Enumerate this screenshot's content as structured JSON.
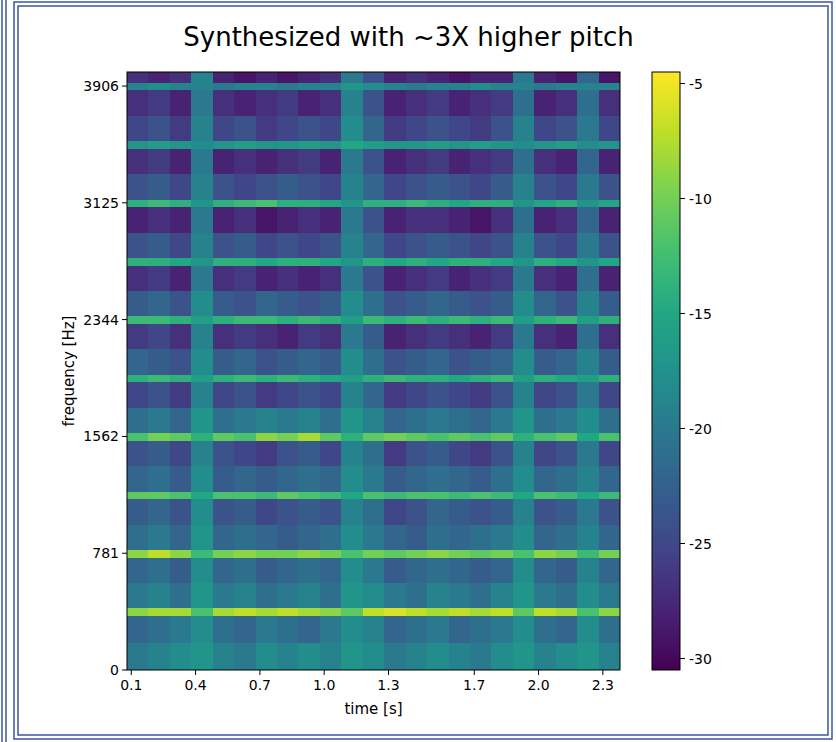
{
  "chart_data": {
    "type": "heatmap",
    "title": "Synthesized with ~3X higher pitch",
    "x_label": "time [s]",
    "y_label": "frequency [Hz]",
    "xlim": [
      0.08,
      2.38
    ],
    "ylim": [
      0,
      4000
    ],
    "xticks": [
      0.1,
      0.4,
      0.7,
      {
        "value": 1.0,
        "label": "1.0"
      },
      1.3,
      1.7,
      {
        "value": 2.0,
        "label": "2.0"
      },
      2.3
    ],
    "yticks": [
      0,
      781,
      1562,
      2344,
      3125,
      3906
    ],
    "color": "viridis",
    "colorbar": {
      "range": [
        -30.5,
        -4.5
      ],
      "ticks": [
        -5,
        -10,
        -15,
        -20,
        -25,
        -30
      ]
    },
    "x_edges": [
      0.08,
      0.18,
      0.28,
      0.38,
      0.48,
      0.58,
      0.68,
      0.78,
      0.88,
      0.98,
      1.08,
      1.18,
      1.28,
      1.38,
      1.48,
      1.58,
      1.68,
      1.78,
      1.88,
      1.98,
      2.08,
      2.18,
      2.28,
      2.38
    ],
    "y_edges": [
      0,
      183,
      366,
      416,
      586,
      756,
      806,
      977,
      1147,
      1197,
      1367,
      1537,
      1587,
      1758,
      1928,
      1978,
      2149,
      2319,
      2369,
      2539,
      2709,
      2759,
      2930,
      3100,
      3150,
      3320,
      3490,
      3540,
      3711,
      3881,
      3931,
      4000
    ],
    "z": [
      [
        -20,
        -19,
        -18,
        -17,
        -19,
        -20,
        -18,
        -19,
        -18,
        -19,
        -17,
        -18,
        -20,
        -19,
        -18,
        -19,
        -20,
        -18,
        -17,
        -19,
        -18,
        -17,
        -19
      ],
      [
        -22,
        -21,
        -20,
        -18,
        -21,
        -22,
        -20,
        -21,
        -22,
        -20,
        -18,
        -19,
        -22,
        -21,
        -20,
        -22,
        -21,
        -20,
        -18,
        -21,
        -22,
        -18,
        -21
      ],
      [
        -9,
        -8,
        -8,
        -12,
        -8,
        -7,
        -8,
        -7,
        -8,
        -9,
        -11,
        -7,
        -6,
        -7,
        -8,
        -7,
        -8,
        -7,
        -11,
        -7,
        -8,
        -12,
        -9
      ],
      [
        -20,
        -19,
        -21,
        -17,
        -20,
        -19,
        -21,
        -20,
        -19,
        -21,
        -17,
        -18,
        -20,
        -21,
        -19,
        -20,
        -21,
        -19,
        -17,
        -20,
        -21,
        -18,
        -20
      ],
      [
        -22,
        -21,
        -23,
        -18,
        -22,
        -21,
        -23,
        -22,
        -21,
        -22,
        -18,
        -20,
        -23,
        -22,
        -21,
        -22,
        -23,
        -22,
        -18,
        -22,
        -23,
        -19,
        -22
      ],
      [
        -9,
        -7,
        -9,
        -13,
        -10,
        -9,
        -10,
        -10,
        -9,
        -10,
        -12,
        -10,
        -11,
        -10,
        -9,
        -10,
        -11,
        -10,
        -12,
        -9,
        -10,
        -13,
        -10
      ],
      [
        -21,
        -20,
        -22,
        -17,
        -22,
        -21,
        -22,
        -23,
        -22,
        -21,
        -18,
        -20,
        -22,
        -23,
        -21,
        -22,
        -21,
        -20,
        -18,
        -22,
        -21,
        -19,
        -22
      ],
      [
        -23,
        -22,
        -24,
        -18,
        -24,
        -23,
        -25,
        -24,
        -23,
        -24,
        -19,
        -21,
        -25,
        -24,
        -22,
        -23,
        -24,
        -23,
        -19,
        -24,
        -23,
        -20,
        -24
      ],
      [
        -11,
        -11,
        -12,
        -15,
        -12,
        -12,
        -13,
        -11,
        -12,
        -13,
        -15,
        -12,
        -13,
        -12,
        -12,
        -13,
        -12,
        -13,
        -15,
        -12,
        -13,
        -15,
        -13
      ],
      [
        -22,
        -21,
        -23,
        -18,
        -23,
        -22,
        -23,
        -22,
        -21,
        -22,
        -18,
        -20,
        -23,
        -22,
        -21,
        -22,
        -23,
        -21,
        -18,
        -22,
        -21,
        -19,
        -22
      ],
      [
        -24,
        -23,
        -25,
        -19,
        -24,
        -25,
        -26,
        -24,
        -23,
        -25,
        -19,
        -21,
        -26,
        -24,
        -23,
        -25,
        -26,
        -24,
        -19,
        -25,
        -24,
        -20,
        -25
      ],
      [
        -12,
        -10,
        -11,
        -14,
        -11,
        -12,
        -9,
        -10,
        -8,
        -11,
        -14,
        -11,
        -10,
        -11,
        -12,
        -11,
        -12,
        -11,
        -14,
        -12,
        -11,
        -15,
        -12
      ],
      [
        -21,
        -20,
        -22,
        -17,
        -21,
        -20,
        -19,
        -20,
        -19,
        -21,
        -17,
        -19,
        -22,
        -21,
        -20,
        -21,
        -22,
        -20,
        -17,
        -21,
        -20,
        -18,
        -21
      ],
      [
        -25,
        -24,
        -26,
        -19,
        -25,
        -24,
        -26,
        -25,
        -24,
        -25,
        -19,
        -22,
        -26,
        -25,
        -24,
        -25,
        -26,
        -24,
        -19,
        -25,
        -24,
        -20,
        -25
      ],
      [
        -14,
        -13,
        -14,
        -16,
        -14,
        -13,
        -14,
        -13,
        -14,
        -15,
        -16,
        -14,
        -13,
        -14,
        -14,
        -15,
        -14,
        -13,
        -16,
        -14,
        -15,
        -16,
        -14
      ],
      [
        -22,
        -23,
        -24,
        -18,
        -23,
        -22,
        -24,
        -23,
        -22,
        -23,
        -18,
        -21,
        -24,
        -23,
        -22,
        -24,
        -23,
        -22,
        -18,
        -23,
        -22,
        -19,
        -23
      ],
      [
        -26,
        -25,
        -27,
        -19,
        -27,
        -26,
        -27,
        -28,
        -26,
        -27,
        -20,
        -23,
        -28,
        -27,
        -26,
        -27,
        -28,
        -26,
        -20,
        -27,
        -28,
        -21,
        -27
      ],
      [
        -13,
        -13,
        -14,
        -16,
        -14,
        -13,
        -13,
        -14,
        -13,
        -14,
        -16,
        -13,
        -14,
        -13,
        -14,
        -13,
        -14,
        -13,
        -16,
        -14,
        -13,
        -16,
        -14
      ],
      [
        -23,
        -22,
        -24,
        -18,
        -23,
        -24,
        -22,
        -23,
        -24,
        -23,
        -18,
        -21,
        -24,
        -23,
        -22,
        -23,
        -24,
        -23,
        -18,
        -22,
        -24,
        -19,
        -23
      ],
      [
        -27,
        -26,
        -28,
        -20,
        -27,
        -26,
        -28,
        -27,
        -28,
        -27,
        -20,
        -24,
        -28,
        -27,
        -26,
        -28,
        -27,
        -26,
        -20,
        -27,
        -28,
        -21,
        -28
      ],
      [
        -14,
        -14,
        -15,
        -17,
        -14,
        -14,
        -15,
        -14,
        -14,
        -15,
        -17,
        -14,
        -15,
        -14,
        -15,
        -14,
        -14,
        -15,
        -17,
        -14,
        -15,
        -17,
        -15
      ],
      [
        -24,
        -23,
        -25,
        -19,
        -24,
        -23,
        -25,
        -24,
        -25,
        -24,
        -19,
        -22,
        -25,
        -24,
        -23,
        -24,
        -25,
        -24,
        -19,
        -24,
        -25,
        -20,
        -24
      ],
      [
        -28,
        -27,
        -28,
        -20,
        -28,
        -27,
        -29,
        -28,
        -27,
        -28,
        -20,
        -24,
        -28,
        -27,
        -27,
        -28,
        -29,
        -27,
        -21,
        -28,
        -27,
        -22,
        -28
      ],
      [
        -14,
        -13,
        -14,
        -17,
        -14,
        -13,
        -12,
        -14,
        -14,
        -15,
        -17,
        -14,
        -14,
        -13,
        -14,
        -15,
        -14,
        -14,
        -17,
        -15,
        -14,
        -17,
        -15
      ],
      [
        -24,
        -23,
        -25,
        -19,
        -24,
        -25,
        -24,
        -23,
        -24,
        -25,
        -19,
        -22,
        -25,
        -24,
        -23,
        -24,
        -25,
        -23,
        -19,
        -24,
        -25,
        -20,
        -24
      ],
      [
        -27,
        -26,
        -28,
        -20,
        -28,
        -27,
        -28,
        -27,
        -26,
        -28,
        -20,
        -24,
        -28,
        -27,
        -26,
        -28,
        -27,
        -26,
        -21,
        -27,
        -28,
        -22,
        -28
      ],
      [
        -17,
        -16,
        -17,
        -18,
        -17,
        -16,
        -17,
        -17,
        -16,
        -17,
        -15,
        -16,
        -17,
        -17,
        -16,
        -17,
        -16,
        -17,
        -18,
        -17,
        -16,
        -18,
        -17
      ],
      [
        -25,
        -24,
        -26,
        -19,
        -25,
        -24,
        -26,
        -25,
        -24,
        -25,
        -18,
        -22,
        -26,
        -25,
        -24,
        -25,
        -26,
        -24,
        -19,
        -25,
        -24,
        -20,
        -25
      ],
      [
        -27,
        -26,
        -28,
        -20,
        -27,
        -28,
        -27,
        -26,
        -28,
        -27,
        -19,
        -24,
        -28,
        -27,
        -26,
        -28,
        -27,
        -26,
        -21,
        -28,
        -27,
        -21,
        -27
      ],
      [
        -19,
        -18,
        -19,
        -19,
        -20,
        -19,
        -19,
        -20,
        -19,
        -19,
        -17,
        -18,
        -19,
        -20,
        -19,
        -19,
        -18,
        -19,
        -19,
        -20,
        -19,
        -19,
        -19
      ],
      [
        -27,
        -28,
        -27,
        -19,
        -28,
        -29,
        -28,
        -29,
        -28,
        -27,
        -20,
        -24,
        -28,
        -27,
        -28,
        -29,
        -28,
        -28,
        -20,
        -28,
        -29,
        -22,
        -29
      ]
    ]
  }
}
